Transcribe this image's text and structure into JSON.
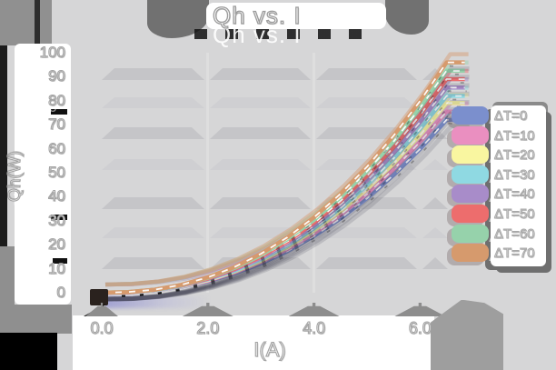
{
  "title": "Qh vs. I",
  "y_axis": {
    "label": "Qh(W)",
    "ticks": [
      "100",
      "90",
      "80",
      "70",
      "60",
      "50",
      "40",
      "30",
      "20",
      "10",
      "0"
    ]
  },
  "x_axis": {
    "label": "I(A)",
    "ticks": [
      "0.0",
      "2.0",
      "4.0",
      "6.0"
    ]
  },
  "legend": {
    "position": "right",
    "items": [
      {
        "label": "ΔT=0",
        "color": "#7b8fcd"
      },
      {
        "label": "ΔT=10",
        "color": "#ea8fc0"
      },
      {
        "label": "ΔT=20",
        "color": "#f9f6a0"
      },
      {
        "label": "ΔT=30",
        "color": "#8fd9e2"
      },
      {
        "label": "ΔT=40",
        "color": "#a88cc9"
      },
      {
        "label": "ΔT=50",
        "color": "#ed6d6d"
      },
      {
        "label": "ΔT=60",
        "color": "#96d2ab"
      },
      {
        "label": "ΔT=70",
        "color": "#d69a6d"
      }
    ]
  },
  "chart_data": {
    "type": "line",
    "title": "Qh vs. I",
    "xlabel": "I(A)",
    "ylabel": "Qh(W)",
    "xlim": [
      0,
      6.5
    ],
    "ylim": [
      0,
      100
    ],
    "x_tick_values": [
      0.0,
      2.0,
      4.0,
      6.0
    ],
    "y_tick_values": [
      0,
      10,
      20,
      30,
      40,
      50,
      60,
      70,
      80,
      90,
      100
    ],
    "grid": "horizontal",
    "legend_position": "right",
    "x": [
      0,
      0.5,
      1.0,
      1.5,
      2.0,
      2.5,
      3.0,
      3.5,
      4.0,
      4.5,
      5.0,
      5.5,
      6.0,
      6.5
    ],
    "series": [
      {
        "name": "ΔT=0",
        "color": "#7b8fcd",
        "values": [
          0,
          0.2,
          1.0,
          2.5,
          4.8,
          8.0,
          12.2,
          17.3,
          23.6,
          30.9,
          39.4,
          49.0,
          59.9,
          72.0
        ]
      },
      {
        "name": "ΔT=10",
        "color": "#ea8fc0",
        "values": [
          0,
          0.2,
          1.0,
          2.6,
          5.0,
          8.4,
          12.8,
          18.2,
          24.7,
          32.4,
          41.3,
          51.4,
          62.8,
          75.5
        ]
      },
      {
        "name": "ΔT=20",
        "color": "#f9f6a0",
        "values": [
          0,
          0.2,
          1.1,
          2.7,
          5.3,
          8.8,
          13.3,
          19.0,
          25.9,
          33.9,
          43.2,
          53.8,
          65.7,
          79.0
        ]
      },
      {
        "name": "ΔT=30",
        "color": "#8fd9e2",
        "values": [
          0,
          0.2,
          1.1,
          2.8,
          5.5,
          9.1,
          13.9,
          19.7,
          26.8,
          35.2,
          44.8,
          55.9,
          68.2,
          82.0
        ]
      },
      {
        "name": "ΔT=40",
        "color": "#a88cc9",
        "values": [
          0,
          0.2,
          1.2,
          2.9,
          5.7,
          9.5,
          14.4,
          20.6,
          28.0,
          36.7,
          46.8,
          58.2,
          71.1,
          85.5
        ]
      },
      {
        "name": "ΔT=50",
        "color": "#ed6d6d",
        "values": [
          0,
          0.2,
          1.2,
          3.1,
          5.9,
          9.9,
          15.0,
          21.4,
          29.1,
          38.2,
          48.7,
          60.6,
          74.0,
          89.0
        ]
      },
      {
        "name": "ΔT=60",
        "color": "#96d2ab",
        "values": [
          0,
          0.3,
          1.2,
          3.2,
          6.2,
          10.3,
          15.6,
          22.3,
          30.3,
          39.7,
          50.6,
          63.0,
          77.0,
          92.5
        ]
      },
      {
        "name": "ΔT=70",
        "color": "#d69a6d",
        "values": [
          0,
          0.3,
          1.3,
          3.3,
          6.4,
          10.7,
          16.2,
          23.1,
          31.4,
          41.2,
          52.5,
          65.4,
          79.9,
          96.0
        ]
      }
    ]
  }
}
